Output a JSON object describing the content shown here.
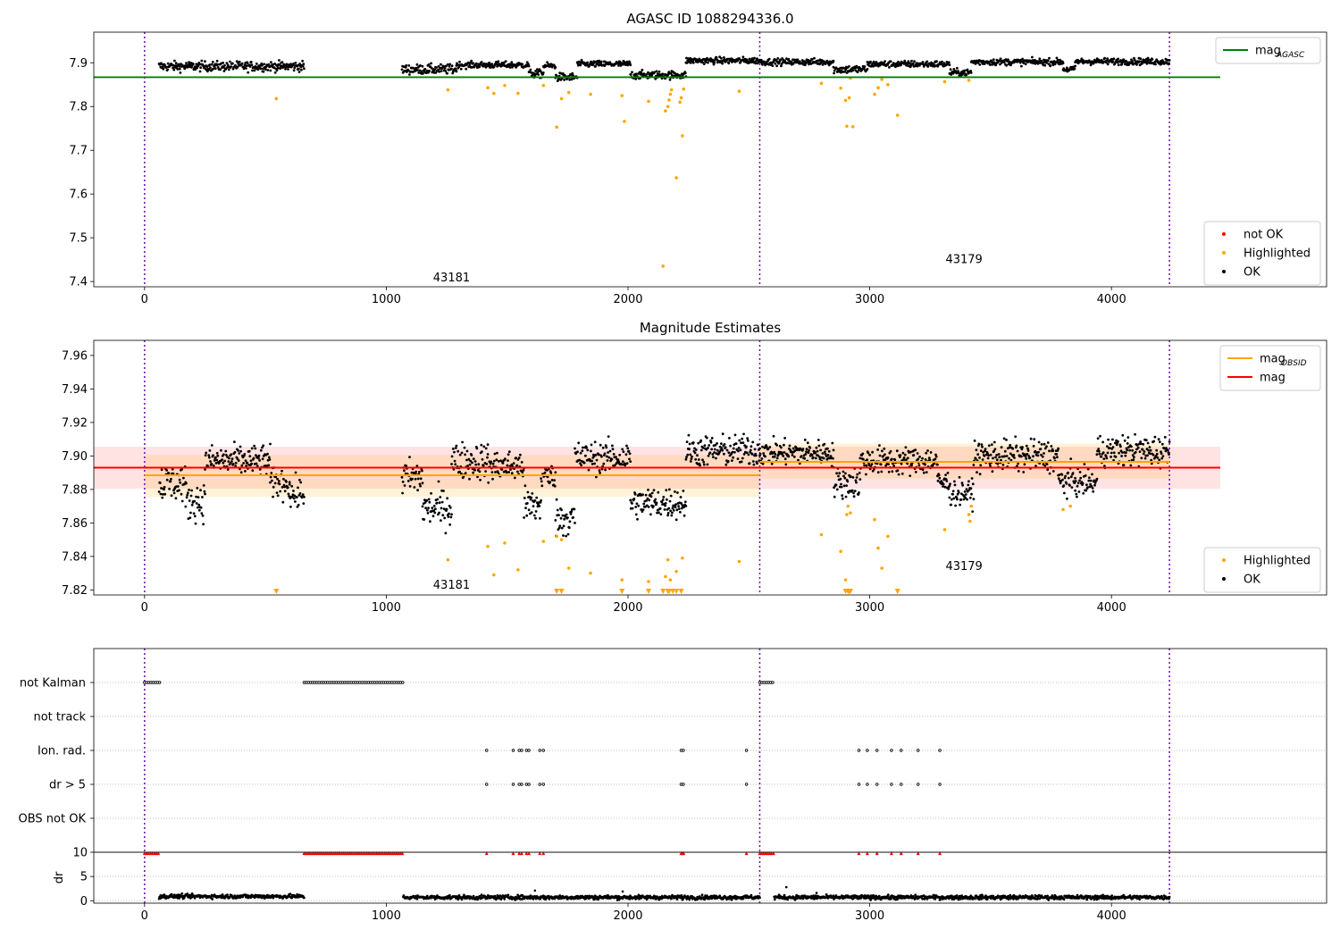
{
  "chart_data": [
    {
      "id": "top",
      "type": "scatter",
      "title": "AGASC ID 1088294336.0",
      "xlim": [
        -210,
        4890
      ],
      "ylim": [
        7.388,
        7.97
      ],
      "xticks": [
        0,
        1000,
        2000,
        3000,
        4000
      ],
      "yticks": [
        7.4,
        7.5,
        7.6,
        7.7,
        7.8,
        7.9
      ],
      "ytick_labels": [
        "7.4",
        "7.5",
        "7.6",
        "7.7",
        "7.8",
        "7.9"
      ],
      "obs_boundaries": [
        0,
        2545,
        4240
      ],
      "hlines": [
        {
          "name": "mag_AGASC",
          "y": 7.867,
          "x_range": [
            -210,
            4450
          ],
          "color": "#008000"
        }
      ],
      "annotations": [
        {
          "text": "43181",
          "x": 1270,
          "y": 7.408
        },
        {
          "text": "43179",
          "x": 3390,
          "y": 7.45
        }
      ],
      "ok_segments": [
        {
          "x": [
            60,
            660
          ],
          "base": 7.892,
          "amp": 0.012
        },
        {
          "x": [
            1065,
            1290
          ],
          "base": 7.885,
          "amp": 0.012
        },
        {
          "x": [
            1290,
            1590
          ],
          "base": 7.895,
          "amp": 0.008
        },
        {
          "x": [
            1590,
            1650
          ],
          "base": 7.875,
          "amp": 0.01
        },
        {
          "x": [
            1650,
            1700
          ],
          "base": 7.893,
          "amp": 0.008
        },
        {
          "x": [
            1700,
            1790
          ],
          "base": 7.867,
          "amp": 0.01
        },
        {
          "x": [
            1790,
            2010
          ],
          "base": 7.897,
          "amp": 0.008
        },
        {
          "x": [
            2010,
            2240
          ],
          "base": 7.872,
          "amp": 0.01
        },
        {
          "x": [
            2240,
            2545
          ],
          "base": 7.905,
          "amp": 0.008
        },
        {
          "x": [
            2545,
            2850
          ],
          "base": 7.902,
          "amp": 0.008
        },
        {
          "x": [
            2850,
            2990
          ],
          "base": 7.885,
          "amp": 0.01
        },
        {
          "x": [
            2990,
            3330
          ],
          "base": 7.897,
          "amp": 0.008
        },
        {
          "x": [
            3330,
            3420
          ],
          "base": 7.878,
          "amp": 0.008
        },
        {
          "x": [
            3420,
            3800
          ],
          "base": 7.902,
          "amp": 0.008
        },
        {
          "x": [
            3800,
            3850
          ],
          "base": 7.885,
          "amp": 0.008
        },
        {
          "x": [
            3850,
            4240
          ],
          "base": 7.903,
          "amp": 0.008
        }
      ],
      "highlighted": {
        "x": [
          545,
          1255,
          1420,
          1445,
          1490,
          1545,
          1650,
          1705,
          1725,
          1755,
          1845,
          1975,
          1985,
          2085,
          2145,
          2155,
          2165,
          2170,
          2175,
          2180,
          2200,
          2215,
          2220,
          2225,
          2230,
          2460,
          2800,
          2880,
          2900,
          2905,
          2915,
          2920,
          2930,
          3020,
          3035,
          3050,
          3075,
          3115,
          3310,
          3410
        ],
        "y": [
          7.818,
          7.838,
          7.843,
          7.83,
          7.848,
          7.83,
          7.848,
          7.753,
          7.818,
          7.832,
          7.828,
          7.825,
          7.766,
          7.812,
          7.435,
          7.79,
          7.8,
          7.815,
          7.828,
          7.838,
          7.637,
          7.81,
          7.82,
          7.733,
          7.84,
          7.835,
          7.853,
          7.842,
          7.814,
          7.755,
          7.82,
          7.865,
          7.754,
          7.828,
          7.843,
          7.862,
          7.85,
          7.78,
          7.857,
          7.86
        ]
      },
      "legends": [
        {
          "position": "upper right",
          "entries": [
            {
              "label": "mag",
              "sub": "AGASC",
              "color": "#008000",
              "kind": "line"
            }
          ]
        },
        {
          "position": "lower right",
          "entries": [
            {
              "label": "not OK",
              "color": "#ff0000",
              "kind": "dot"
            },
            {
              "label": "Highlighted",
              "color": "#ffa500",
              "kind": "dot"
            },
            {
              "label": "OK",
              "color": "#000000",
              "kind": "dot"
            }
          ]
        }
      ]
    },
    {
      "id": "middle",
      "type": "scatter",
      "title": "Magnitude Estimates",
      "xlim": [
        -210,
        4890
      ],
      "ylim": [
        7.817,
        7.969
      ],
      "xticks": [
        0,
        1000,
        2000,
        3000,
        4000
      ],
      "yticks": [
        7.82,
        7.84,
        7.86,
        7.88,
        7.9,
        7.92,
        7.94,
        7.96
      ],
      "ytick_labels": [
        "7.82",
        "7.84",
        "7.86",
        "7.88",
        "7.90",
        "7.92",
        "7.94",
        "7.96"
      ],
      "obs_boundaries": [
        0,
        2545,
        4240
      ],
      "bands": [
        {
          "x": [
            -210,
            4450
          ],
          "y": [
            7.8805,
            7.9055
          ],
          "color": "#ff0000",
          "opacity": 0.11
        },
        {
          "x": [
            0,
            2545
          ],
          "y": [
            7.8755,
            7.9005
          ],
          "color": "#ffa500",
          "opacity": 0.15
        },
        {
          "x": [
            2545,
            4240
          ],
          "y": [
            7.8865,
            7.9075
          ],
          "color": "#ffa500",
          "opacity": 0.15
        }
      ],
      "hlines": [
        {
          "name": "mag_OBSID 43181",
          "y": 7.8885,
          "x_range": [
            0,
            2545
          ],
          "color": "#ffa500"
        },
        {
          "name": "mag_OBSID 43179",
          "y": 7.8965,
          "x_range": [
            2545,
            4240
          ],
          "color": "#ffa500"
        },
        {
          "name": "mag",
          "y": 7.893,
          "x_range": [
            -210,
            4450
          ],
          "color": "#ff0000"
        }
      ],
      "annotations": [
        {
          "text": "43181",
          "x": 1270,
          "y": 7.823
        },
        {
          "text": "43179",
          "x": 3390,
          "y": 7.834
        }
      ],
      "ok_segments": [
        {
          "x": [
            60,
            170
          ],
          "base": 7.884,
          "amp": 0.012
        },
        {
          "x": [
            170,
            250
          ],
          "base": 7.873,
          "amp": 0.012
        },
        {
          "x": [
            250,
            520
          ],
          "base": 7.897,
          "amp": 0.01
        },
        {
          "x": [
            520,
            600
          ],
          "base": 7.884,
          "amp": 0.01
        },
        {
          "x": [
            600,
            660
          ],
          "base": 7.877,
          "amp": 0.01
        },
        {
          "x": [
            1065,
            1150
          ],
          "base": 7.887,
          "amp": 0.012
        },
        {
          "x": [
            1150,
            1270
          ],
          "base": 7.869,
          "amp": 0.012
        },
        {
          "x": [
            1270,
            1420
          ],
          "base": 7.897,
          "amp": 0.012
        },
        {
          "x": [
            1420,
            1570
          ],
          "base": 7.894,
          "amp": 0.01
        },
        {
          "x": [
            1570,
            1640
          ],
          "base": 7.87,
          "amp": 0.012
        },
        {
          "x": [
            1640,
            1700
          ],
          "base": 7.888,
          "amp": 0.008
        },
        {
          "x": [
            1700,
            1780
          ],
          "base": 7.863,
          "amp": 0.012
        },
        {
          "x": [
            1780,
            2010
          ],
          "base": 7.899,
          "amp": 0.01
        },
        {
          "x": [
            2010,
            2240
          ],
          "base": 7.872,
          "amp": 0.01
        },
        {
          "x": [
            2240,
            2545
          ],
          "base": 7.903,
          "amp": 0.01
        },
        {
          "x": [
            2545,
            2850
          ],
          "base": 7.902,
          "amp": 0.008
        },
        {
          "x": [
            2850,
            2960
          ],
          "base": 7.884,
          "amp": 0.01
        },
        {
          "x": [
            2960,
            3280
          ],
          "base": 7.897,
          "amp": 0.009
        },
        {
          "x": [
            3280,
            3330
          ],
          "base": 7.884,
          "amp": 0.008
        },
        {
          "x": [
            3330,
            3430
          ],
          "base": 7.878,
          "amp": 0.008
        },
        {
          "x": [
            3430,
            3780
          ],
          "base": 7.9,
          "amp": 0.01
        },
        {
          "x": [
            3780,
            3850
          ],
          "base": 7.885,
          "amp": 0.01
        },
        {
          "x": [
            3850,
            3940
          ],
          "base": 7.884,
          "amp": 0.008
        },
        {
          "x": [
            3940,
            4240
          ],
          "base": 7.903,
          "amp": 0.01
        }
      ],
      "highlighted": {
        "x": [
          1255,
          1420,
          1445,
          1490,
          1545,
          1650,
          1705,
          1725,
          1755,
          1845,
          1975,
          2085,
          2155,
          2165,
          2175,
          2200,
          2225,
          2460,
          2800,
          2880,
          2900,
          2905,
          2910,
          2920,
          3020,
          3035,
          3050,
          3075,
          3310,
          3410,
          3415,
          3420,
          3800,
          3830
        ],
        "y": [
          7.838,
          7.846,
          7.829,
          7.848,
          7.832,
          7.849,
          7.852,
          7.85,
          7.833,
          7.83,
          7.826,
          7.825,
          7.828,
          7.838,
          7.826,
          7.831,
          7.839,
          7.837,
          7.853,
          7.843,
          7.826,
          7.865,
          7.87,
          7.866,
          7.862,
          7.845,
          7.833,
          7.852,
          7.856,
          7.865,
          7.861,
          7.87,
          7.868,
          7.87
        ]
      },
      "clipped_markers_x": [
        545,
        1705,
        1725,
        1975,
        2085,
        2145,
        2165,
        2170,
        2185,
        2200,
        2220,
        2900,
        2910,
        2915,
        2920,
        3115
      ],
      "legends": [
        {
          "position": "upper right",
          "entries": [
            {
              "label": "mag",
              "sub": "OBSID",
              "color": "#ffa500",
              "kind": "line"
            },
            {
              "label": "mag",
              "sub": "",
              "color": "#ff0000",
              "kind": "line"
            }
          ]
        },
        {
          "position": "lower right",
          "entries": [
            {
              "label": "Highlighted",
              "color": "#ffa500",
              "kind": "dot"
            },
            {
              "label": "OK",
              "color": "#000000",
              "kind": "dot"
            }
          ]
        }
      ]
    },
    {
      "id": "flags",
      "type": "scatter",
      "xlim": [
        -210,
        4890
      ],
      "categories": [
        "not Kalman",
        "not track",
        "Ion. rad.",
        "dr > 5",
        "OBS not OK"
      ],
      "obs_boundaries": [
        0,
        2545,
        4240
      ],
      "flag_ranges": {
        "not Kalman": [
          [
            0,
            65
          ],
          [
            660,
            1070
          ],
          [
            2545,
            2605
          ]
        ],
        "not track": [],
        "Ion. rad.": [
          [
            1415,
            1415
          ],
          [
            1525,
            1525
          ],
          [
            1550,
            1550
          ],
          [
            1560,
            1560
          ],
          [
            1580,
            1580
          ],
          [
            1590,
            1590
          ],
          [
            1635,
            1635
          ],
          [
            1650,
            1650
          ],
          [
            2220,
            2230
          ],
          [
            2490,
            2490
          ],
          [
            2955,
            2955
          ],
          [
            2990,
            2990
          ],
          [
            3030,
            3030
          ],
          [
            3090,
            3090
          ],
          [
            3130,
            3130
          ],
          [
            3200,
            3200
          ],
          [
            3290,
            3290
          ]
        ],
        "dr > 5": [
          [
            1415,
            1415
          ],
          [
            1525,
            1525
          ],
          [
            1550,
            1550
          ],
          [
            1560,
            1560
          ],
          [
            1580,
            1580
          ],
          [
            1590,
            1590
          ],
          [
            1635,
            1635
          ],
          [
            1650,
            1650
          ],
          [
            2220,
            2230
          ],
          [
            2490,
            2490
          ],
          [
            2955,
            2955
          ],
          [
            2990,
            2990
          ],
          [
            3030,
            3030
          ],
          [
            3090,
            3090
          ],
          [
            3130,
            3130
          ],
          [
            3200,
            3200
          ],
          [
            3290,
            3290
          ]
        ],
        "OBS not OK": []
      }
    },
    {
      "id": "dr",
      "type": "scatter",
      "xlim": [
        -210,
        4890
      ],
      "ylim": [
        -0.5,
        10
      ],
      "yticks": [
        0,
        5,
        10
      ],
      "ytick_labels": [
        "0",
        "5",
        "10"
      ],
      "xticks": [
        0,
        1000,
        2000,
        3000,
        4000
      ],
      "ylabel": "dr",
      "obs_boundaries": [
        0,
        2545,
        4240
      ],
      "ok_segments": [
        {
          "x": [
            60,
            660
          ],
          "base": 0.9,
          "amp": 0.45
        },
        {
          "x": [
            1070,
            2545
          ],
          "base": 0.7,
          "amp": 0.45
        },
        {
          "x": [
            2605,
            4240
          ],
          "base": 0.7,
          "amp": 0.45
        }
      ],
      "outliers": {
        "x": [
          1615,
          2655,
          2780,
          1978
        ],
        "y": [
          2.1,
          2.8,
          1.6,
          1.9
        ]
      },
      "capped_x_ranges": [
        [
          0,
          65
        ],
        [
          660,
          1070
        ],
        [
          2545,
          2605
        ]
      ],
      "capped_x_points": [
        1415,
        1525,
        1550,
        1560,
        1580,
        1590,
        1635,
        1650,
        2220,
        2225,
        2230,
        2490,
        2955,
        2990,
        3030,
        3090,
        3130,
        3200,
        3290
      ]
    }
  ]
}
